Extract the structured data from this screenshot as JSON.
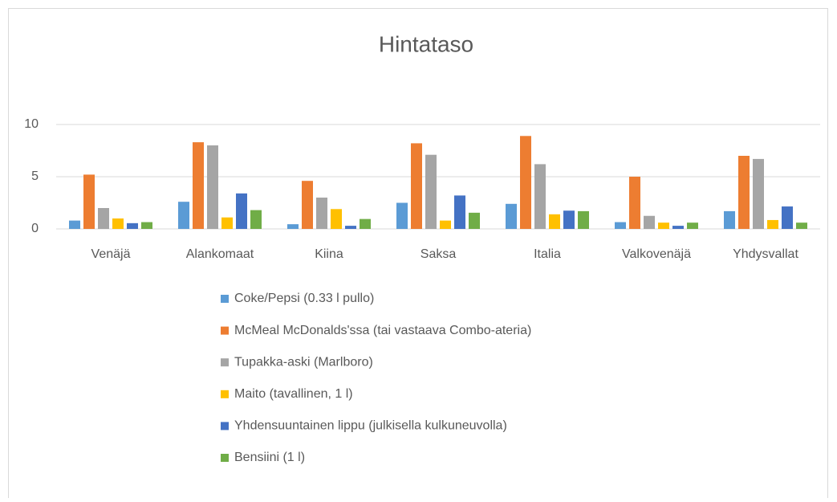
{
  "chart_data": {
    "type": "bar",
    "title": "Hintataso",
    "categories": [
      "Venäjä",
      "Alankomaat",
      "Kiina",
      "Saksa",
      "Italia",
      "Valkovenäjä",
      "Yhdysvallat"
    ],
    "series": [
      {
        "name": "Coke/Pepsi (0.33 l pullo)",
        "color": "#5b9bd5",
        "values": [
          0.8,
          2.6,
          0.45,
          2.5,
          2.4,
          0.65,
          1.7
        ]
      },
      {
        "name": "McMeal McDonalds'ssa (tai vastaava Combo-ateria)",
        "color": "#ed7d31",
        "values": [
          5.2,
          8.3,
          4.6,
          8.2,
          8.9,
          5.0,
          7.0
        ]
      },
      {
        "name": "Tupakka-aski (Marlboro)",
        "color": "#a5a5a5",
        "values": [
          2.0,
          8.0,
          3.0,
          7.1,
          6.2,
          1.25,
          6.7
        ]
      },
      {
        "name": "Maito (tavallinen, 1 l)",
        "color": "#ffc000",
        "values": [
          1.0,
          1.1,
          1.9,
          0.8,
          1.4,
          0.6,
          0.85
        ]
      },
      {
        "name": "Yhdensuuntainen lippu (julkisella kulkuneuvolla)",
        "color": "#4472c4",
        "values": [
          0.55,
          3.4,
          0.3,
          3.2,
          1.75,
          0.3,
          2.15
        ]
      },
      {
        "name": "Bensiini (1 l)",
        "color": "#70ad47",
        "values": [
          0.65,
          1.8,
          0.95,
          1.55,
          1.7,
          0.6,
          0.6
        ]
      }
    ],
    "ylim": [
      0,
      10
    ],
    "yticks": [
      0,
      5,
      10
    ],
    "grid": true,
    "legend": "bottom"
  }
}
